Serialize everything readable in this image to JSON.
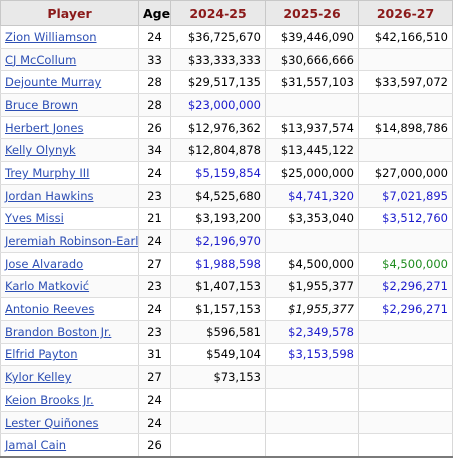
{
  "headers": {
    "player": "Player",
    "age": "Age",
    "y1": "2024-25",
    "y2": "2025-26",
    "y3": "2026-27"
  },
  "legend_colors": {
    "guaranteed": "#000000",
    "team_option": "#1a1acc",
    "player_option": "#1e8c1e",
    "header_text": "#8b1a1a",
    "link": "#2d4fb4"
  },
  "rows": [
    {
      "player": "Zion Williamson",
      "age": "24",
      "y1": "$36,725,670",
      "y1_type": "guaranteed",
      "y2": "$39,446,090",
      "y2_type": "guaranteed",
      "y3": "$42,166,510",
      "y3_type": "guaranteed"
    },
    {
      "player": "CJ McCollum",
      "age": "33",
      "y1": "$33,333,333",
      "y1_type": "guaranteed",
      "y2": "$30,666,666",
      "y2_type": "guaranteed",
      "y3": "",
      "y3_type": "guaranteed"
    },
    {
      "player": "Dejounte Murray",
      "age": "28",
      "y1": "$29,517,135",
      "y1_type": "guaranteed",
      "y2": "$31,557,103",
      "y2_type": "guaranteed",
      "y3": "$33,597,072",
      "y3_type": "guaranteed"
    },
    {
      "player": "Bruce Brown",
      "age": "28",
      "y1": "$23,000,000",
      "y1_type": "option",
      "y2": "",
      "y2_type": "guaranteed",
      "y3": "",
      "y3_type": "guaranteed"
    },
    {
      "player": "Herbert Jones",
      "age": "26",
      "y1": "$12,976,362",
      "y1_type": "guaranteed",
      "y2": "$13,937,574",
      "y2_type": "guaranteed",
      "y3": "$14,898,786",
      "y3_type": "guaranteed"
    },
    {
      "player": "Kelly Olynyk",
      "age": "34",
      "y1": "$12,804,878",
      "y1_type": "guaranteed",
      "y2": "$13,445,122",
      "y2_type": "guaranteed",
      "y3": "",
      "y3_type": "guaranteed"
    },
    {
      "player": "Trey Murphy III",
      "age": "24",
      "y1": "$5,159,854",
      "y1_type": "option",
      "y2": "$25,000,000",
      "y2_type": "guaranteed",
      "y3": "$27,000,000",
      "y3_type": "guaranteed"
    },
    {
      "player": "Jordan Hawkins",
      "age": "23",
      "y1": "$4,525,680",
      "y1_type": "guaranteed",
      "y2": "$4,741,320",
      "y2_type": "option",
      "y3": "$7,021,895",
      "y3_type": "option"
    },
    {
      "player": "Yves Missi",
      "age": "21",
      "y1": "$3,193,200",
      "y1_type": "guaranteed",
      "y2": "$3,353,040",
      "y2_type": "guaranteed",
      "y3": "$3,512,760",
      "y3_type": "option"
    },
    {
      "player": "Jeremiah Robinson-Earl",
      "age": "24",
      "y1": "$2,196,970",
      "y1_type": "option",
      "y2": "",
      "y2_type": "guaranteed",
      "y3": "",
      "y3_type": "guaranteed"
    },
    {
      "player": "Jose Alvarado",
      "age": "27",
      "y1": "$1,988,598",
      "y1_type": "option",
      "y2": "$4,500,000",
      "y2_type": "guaranteed",
      "y3": "$4,500,000",
      "y3_type": "player"
    },
    {
      "player": "Karlo Matković",
      "age": "23",
      "y1": "$1,407,153",
      "y1_type": "guaranteed",
      "y2": "$1,955,377",
      "y2_type": "guaranteed",
      "y3": "$2,296,271",
      "y3_type": "option"
    },
    {
      "player": "Antonio Reeves",
      "age": "24",
      "y1": "$1,157,153",
      "y1_type": "guaranteed",
      "y2": "$1,955,377",
      "y2_type": "qual",
      "y3": "$2,296,271",
      "y3_type": "option"
    },
    {
      "player": "Brandon Boston Jr.",
      "age": "23",
      "y1": "$596,581",
      "y1_type": "guaranteed",
      "y2": "$2,349,578",
      "y2_type": "option",
      "y3": "",
      "y3_type": "guaranteed"
    },
    {
      "player": "Elfrid Payton",
      "age": "31",
      "y1": "$549,104",
      "y1_type": "guaranteed",
      "y2": "$3,153,598",
      "y2_type": "option",
      "y3": "",
      "y3_type": "guaranteed"
    },
    {
      "player": "Kylor Kelley",
      "age": "27",
      "y1": "$73,153",
      "y1_type": "guaranteed",
      "y2": "",
      "y2_type": "guaranteed",
      "y3": "",
      "y3_type": "guaranteed"
    },
    {
      "player": "Keion Brooks Jr.",
      "age": "24",
      "y1": "",
      "y1_type": "guaranteed",
      "y2": "",
      "y2_type": "guaranteed",
      "y3": "",
      "y3_type": "guaranteed"
    },
    {
      "player": "Lester Quiñones",
      "age": "24",
      "y1": "",
      "y1_type": "guaranteed",
      "y2": "",
      "y2_type": "guaranteed",
      "y3": "",
      "y3_type": "guaranteed"
    },
    {
      "player": "Jamal Cain",
      "age": "26",
      "y1": "",
      "y1_type": "guaranteed",
      "y2": "",
      "y2_type": "guaranteed",
      "y3": "",
      "y3_type": "guaranteed"
    }
  ]
}
